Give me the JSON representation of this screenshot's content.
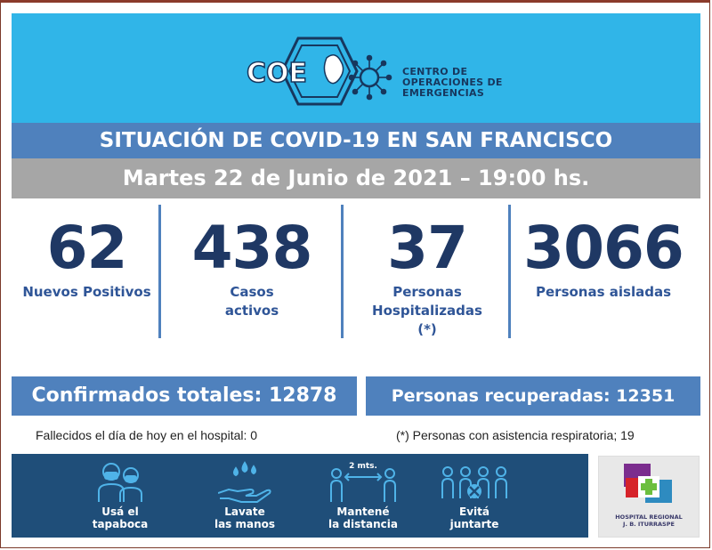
{
  "header": {
    "logo_text": "COE",
    "org_name": "CENTRO DE\nOPERACIONES DE\nEMERGENCIAS"
  },
  "title": "SITUACIÓN DE COVID-19 EN SAN FRANCISCO",
  "date": "Martes 22 de Junio de 2021 – 19:00 hs.",
  "stats": [
    {
      "value": "62",
      "label": "Nuevos Positivos"
    },
    {
      "value": "438",
      "label": "Casos\nactivos"
    },
    {
      "value": "37",
      "label": "Personas\nHospitalizadas\n(*)"
    },
    {
      "value": "3066",
      "label": "Personas aisladas"
    }
  ],
  "totals": {
    "confirmed": "Confirmados totales: 12878",
    "recovered": "Personas recuperadas: 12351"
  },
  "notes": {
    "deaths": "Fallecidos el día de hoy en el hospital: 0",
    "respiratory": "(*) Personas con asistencia respiratoria; 19"
  },
  "tips": [
    {
      "label": "Usá el\ntapaboca",
      "icon": "mask-people-icon"
    },
    {
      "label": "Lavate\nlas manos",
      "icon": "hand-wash-icon"
    },
    {
      "label": "Mantené\nla distancia",
      "icon": "distance-icon",
      "distance": "2 mts."
    },
    {
      "label": "Evitá\njuntarte",
      "icon": "crowd-icon"
    }
  ],
  "hospital": {
    "name": "HOSPITAL REGIONAL\nJ. B. ITURRASPE"
  },
  "colors": {
    "header_bg": "#30b5e8",
    "title_bg": "#4f81bd",
    "date_bg": "#a6a6a6",
    "number": "#1f3864",
    "banner_bg": "#1f4e79"
  }
}
